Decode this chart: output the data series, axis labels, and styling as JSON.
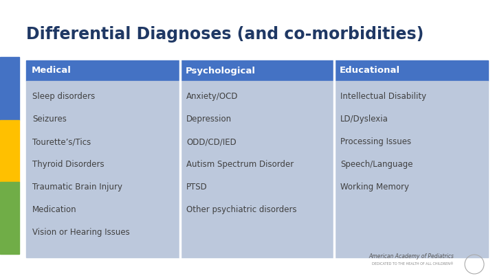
{
  "title": "Differential Diagnoses (and co-morbidities)",
  "title_color": "#1F3864",
  "title_fontsize": 17,
  "bg_color": "#FFFFFF",
  "header_bg": "#4472C4",
  "header_text_color": "#FFFFFF",
  "cell_bg": "#BCC8DC",
  "headers": [
    "Medical",
    "Psychological",
    "Educational"
  ],
  "col1": [
    "Sleep disorders",
    "Seizures",
    "Tourette’s/Tics",
    "Thyroid Disorders",
    "Traumatic Brain Injury",
    "Medication",
    "Vision or Hearing Issues"
  ],
  "col2": [
    "Anxiety/OCD",
    "Depression",
    "ODD/CD/IED",
    "Autism Spectrum Disorder",
    "PTSD",
    "Other psychiatric disorders"
  ],
  "col3": [
    "Intellectual Disability",
    "LD/Dyslexia",
    "Processing Issues",
    "Speech/Language",
    "Working Memory"
  ],
  "side_bar_colors": [
    "#4472C4",
    "#FFC000",
    "#70AD47"
  ],
  "cell_text_color": "#404040",
  "cell_fontsize": 8.5,
  "header_fontsize": 9.5,
  "aap_text": "American Academy of Pediatrics",
  "aap_subtext": "DEDICATED TO THE HEALTH OF ALL CHILDREN®"
}
